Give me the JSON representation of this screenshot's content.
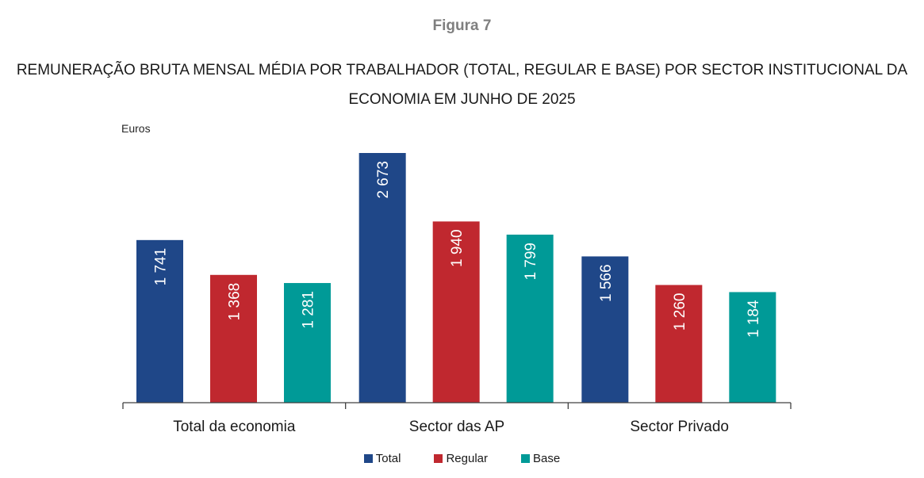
{
  "figure_label": "Figura 7",
  "chart_data": {
    "type": "bar",
    "title_line1": "REMUNERAÇÃO BRUTA MENSAL MÉDIA POR TRABALHADOR (TOTAL, REGULAR E BASE) POR SECTOR INSTITUCIONAL DA",
    "title_line2": "ECONOMIA EM JUNHO DE 2025",
    "ylabel": "Euros",
    "xlabel": "",
    "categories": [
      "Total da economia",
      "Sector das AP",
      "Sector Privado"
    ],
    "series": [
      {
        "name": "Total",
        "color": "#1f4788",
        "values": [
          1741,
          2673,
          1566
        ],
        "labels": [
          "1 741",
          "2 673",
          "1 566"
        ]
      },
      {
        "name": "Regular",
        "color": "#c0282f",
        "values": [
          1368,
          1940,
          1260
        ],
        "labels": [
          "1 368",
          "1 940",
          "1 260"
        ]
      },
      {
        "name": "Base",
        "color": "#009a97",
        "values": [
          1281,
          1799,
          1184
        ],
        "labels": [
          "1 281",
          "1 799",
          "1 184"
        ]
      }
    ],
    "ylim": [
      0,
      2673
    ],
    "grid": false,
    "y_axis_visible": false,
    "data_labels": "inside-end, rotated vertical",
    "legend_position": "bottom"
  }
}
